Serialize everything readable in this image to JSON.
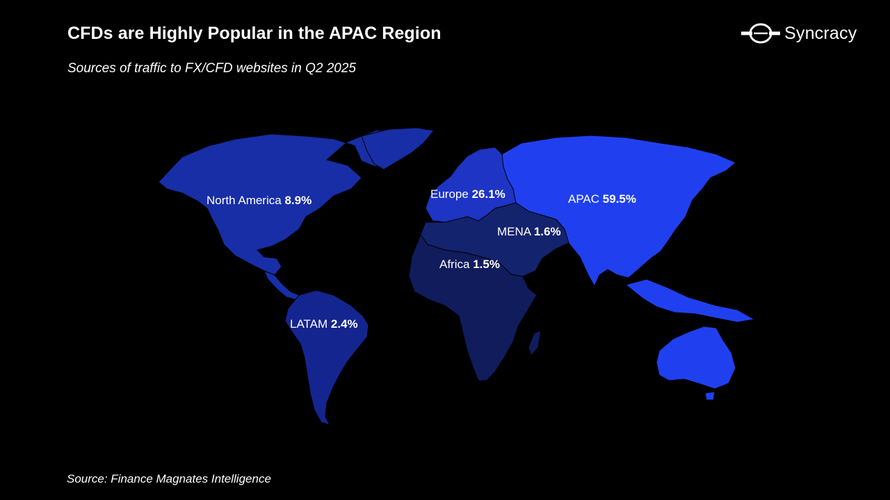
{
  "header": {
    "title": "CFDs are Highly Popular in the APAC Region",
    "subtitle": "Sources of traffic to FX/CFD websites in Q2 2025"
  },
  "logo": {
    "text": "Syncracy",
    "icon": "syncracy-logo-icon"
  },
  "footer": {
    "source": "Source: Finance Magnates Intelligence"
  },
  "colors": {
    "background": "#000000",
    "apac": "#2040f0",
    "europe": "#1e34c4",
    "north_america": "#172ea6",
    "latam": "#15258f",
    "mena": "#14236e",
    "africa": "#101c5c",
    "text": "#ffffff"
  },
  "regions": [
    {
      "key": "north_america",
      "name": "North America",
      "value": "8.9%"
    },
    {
      "key": "europe",
      "name": "Europe",
      "value": "26.1%"
    },
    {
      "key": "apac",
      "name": "APAC",
      "value": "59.5%"
    },
    {
      "key": "mena",
      "name": "MENA",
      "value": "1.6%"
    },
    {
      "key": "africa",
      "name": "Africa",
      "value": "1.5%"
    },
    {
      "key": "latam",
      "name": "LATAM",
      "value": "2.4%"
    }
  ]
}
